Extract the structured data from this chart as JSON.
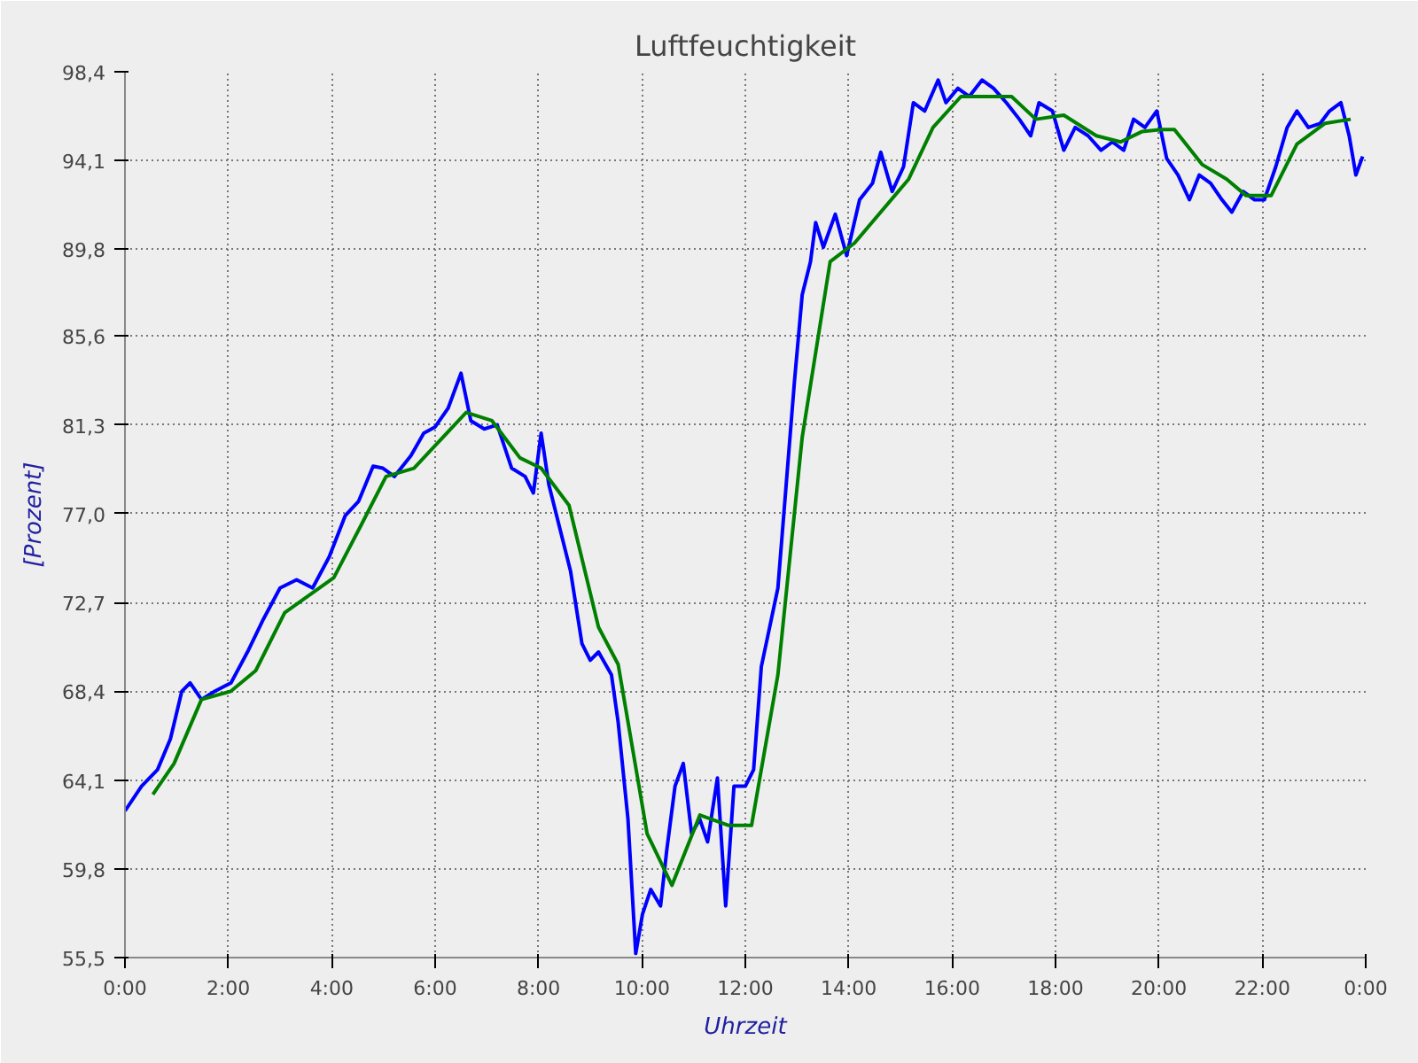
{
  "chart_data": {
    "type": "line",
    "title": "Luftfeuchtigkeit",
    "xlabel": "Uhrzeit",
    "ylabel": "[Prozent]",
    "xlim": [
      0,
      24
    ],
    "xticks": [
      {
        "value": 0,
        "label": "0:00"
      },
      {
        "value": 2,
        "label": "2:00"
      },
      {
        "value": 4,
        "label": "4:00"
      },
      {
        "value": 6,
        "label": "6:00"
      },
      {
        "value": 8,
        "label": "8:00"
      },
      {
        "value": 10,
        "label": "10:00"
      },
      {
        "value": 12,
        "label": "12:00"
      },
      {
        "value": 14,
        "label": "14:00"
      },
      {
        "value": 16,
        "label": "16:00"
      },
      {
        "value": 18,
        "label": "18:00"
      },
      {
        "value": 20,
        "label": "20:00"
      },
      {
        "value": 22,
        "label": "22:00"
      },
      {
        "value": 24,
        "label": "0:00"
      }
    ],
    "ylim": [
      55.5,
      98.4
    ],
    "yticks": [
      {
        "value": 55.5,
        "label": "55,5"
      },
      {
        "value": 59.8,
        "label": "59,8"
      },
      {
        "value": 64.1,
        "label": "64,1"
      },
      {
        "value": 68.4,
        "label": "68,4"
      },
      {
        "value": 72.7,
        "label": "72,7"
      },
      {
        "value": 77.0,
        "label": "77,0"
      },
      {
        "value": 81.3,
        "label": "81,3"
      },
      {
        "value": 85.6,
        "label": "85,6"
      },
      {
        "value": 89.8,
        "label": "89,8"
      },
      {
        "value": 94.1,
        "label": "94,1"
      },
      {
        "value": 98.4,
        "label": "98,4"
      }
    ],
    "grid": true,
    "line_style": "solid",
    "marker": "none",
    "series": [
      {
        "color": "#0000ff",
        "x": [
          0,
          0.32,
          0.63,
          0.88,
          1.1,
          1.26,
          1.48,
          1.74,
          2.05,
          2.37,
          2.68,
          3.0,
          3.32,
          3.63,
          3.95,
          4.26,
          4.52,
          4.8,
          4.99,
          5.21,
          5.53,
          5.78,
          6.0,
          6.25,
          6.5,
          6.69,
          6.95,
          7.2,
          7.48,
          7.74,
          7.9,
          8.05,
          8.2,
          8.43,
          8.62,
          8.84,
          9.0,
          9.16,
          9.41,
          9.54,
          9.73,
          9.88,
          10.01,
          10.17,
          10.36,
          10.48,
          10.64,
          10.8,
          10.96,
          11.12,
          11.27,
          11.46,
          11.62,
          11.78,
          12.0,
          12.16,
          12.31,
          12.47,
          12.63,
          12.79,
          12.95,
          13.1,
          13.26,
          13.36,
          13.51,
          13.74,
          13.96,
          14.21,
          14.46,
          14.62,
          14.84,
          15.06,
          15.25,
          15.47,
          15.73,
          15.88,
          16.11,
          16.33,
          16.58,
          16.8,
          17.05,
          17.3,
          17.52,
          17.68,
          17.94,
          18.16,
          18.38,
          18.63,
          18.88,
          19.1,
          19.32,
          19.51,
          19.73,
          19.96,
          20.15,
          20.37,
          20.59,
          20.78,
          21.0,
          21.22,
          21.41,
          21.63,
          21.85,
          22.04,
          22.26,
          22.48,
          22.67,
          22.89,
          23.12,
          23.3,
          23.52,
          23.68,
          23.81,
          23.94
        ],
        "values": [
          62.6,
          63.8,
          64.6,
          66.1,
          68.4,
          68.8,
          68.0,
          68.4,
          68.8,
          70.3,
          71.9,
          73.4,
          73.8,
          73.4,
          74.9,
          76.9,
          77.6,
          79.3,
          79.2,
          78.8,
          79.8,
          80.9,
          81.2,
          82.1,
          83.8,
          81.5,
          81.1,
          81.3,
          79.2,
          78.8,
          78.0,
          80.9,
          78.4,
          76.1,
          74.2,
          70.7,
          69.9,
          70.3,
          69.2,
          66.9,
          62.2,
          55.7,
          57.6,
          58.8,
          58.0,
          60.7,
          63.8,
          64.9,
          61.5,
          62.2,
          61.1,
          64.2,
          58.0,
          63.8,
          63.8,
          64.6,
          69.6,
          71.5,
          73.4,
          78.4,
          83.4,
          87.6,
          89.2,
          91.1,
          89.9,
          91.5,
          89.5,
          92.2,
          93.0,
          94.5,
          92.6,
          93.8,
          96.9,
          96.5,
          98.0,
          96.9,
          97.6,
          97.2,
          98.0,
          97.6,
          96.9,
          96.1,
          95.3,
          96.9,
          96.5,
          94.6,
          95.7,
          95.3,
          94.6,
          95.0,
          94.6,
          96.1,
          95.7,
          96.5,
          94.2,
          93.4,
          92.2,
          93.4,
          93.0,
          92.2,
          91.6,
          92.6,
          92.2,
          92.2,
          93.8,
          95.7,
          96.5,
          95.7,
          95.9,
          96.5,
          96.9,
          95.3,
          93.4,
          94.3
        ]
      },
      {
        "color": "#008000",
        "x": [
          0.54,
          0.95,
          1.48,
          2.05,
          2.53,
          3.09,
          4.04,
          4.58,
          5.05,
          5.59,
          6.6,
          7.1,
          7.64,
          8.05,
          8.59,
          9.16,
          9.54,
          10.1,
          10.58,
          11.12,
          11.68,
          12.12,
          12.63,
          13.1,
          13.64,
          14.11,
          15.16,
          15.63,
          16.17,
          17.15,
          17.62,
          18.16,
          18.79,
          19.26,
          19.67,
          20.05,
          20.3,
          20.84,
          21.31,
          21.69,
          22.17,
          22.67,
          23.21,
          23.71
        ],
        "values": [
          63.4,
          64.9,
          68.0,
          68.4,
          69.4,
          72.2,
          73.9,
          76.5,
          78.8,
          79.2,
          81.9,
          81.5,
          79.7,
          79.2,
          77.4,
          71.5,
          69.7,
          61.5,
          59.0,
          62.4,
          61.9,
          61.9,
          69.2,
          80.7,
          89.2,
          90.1,
          93.2,
          95.7,
          97.2,
          97.2,
          96.1,
          96.3,
          95.3,
          95.0,
          95.5,
          95.6,
          95.6,
          93.9,
          93.2,
          92.4,
          92.4,
          94.9,
          95.9,
          96.1
        ]
      }
    ]
  }
}
